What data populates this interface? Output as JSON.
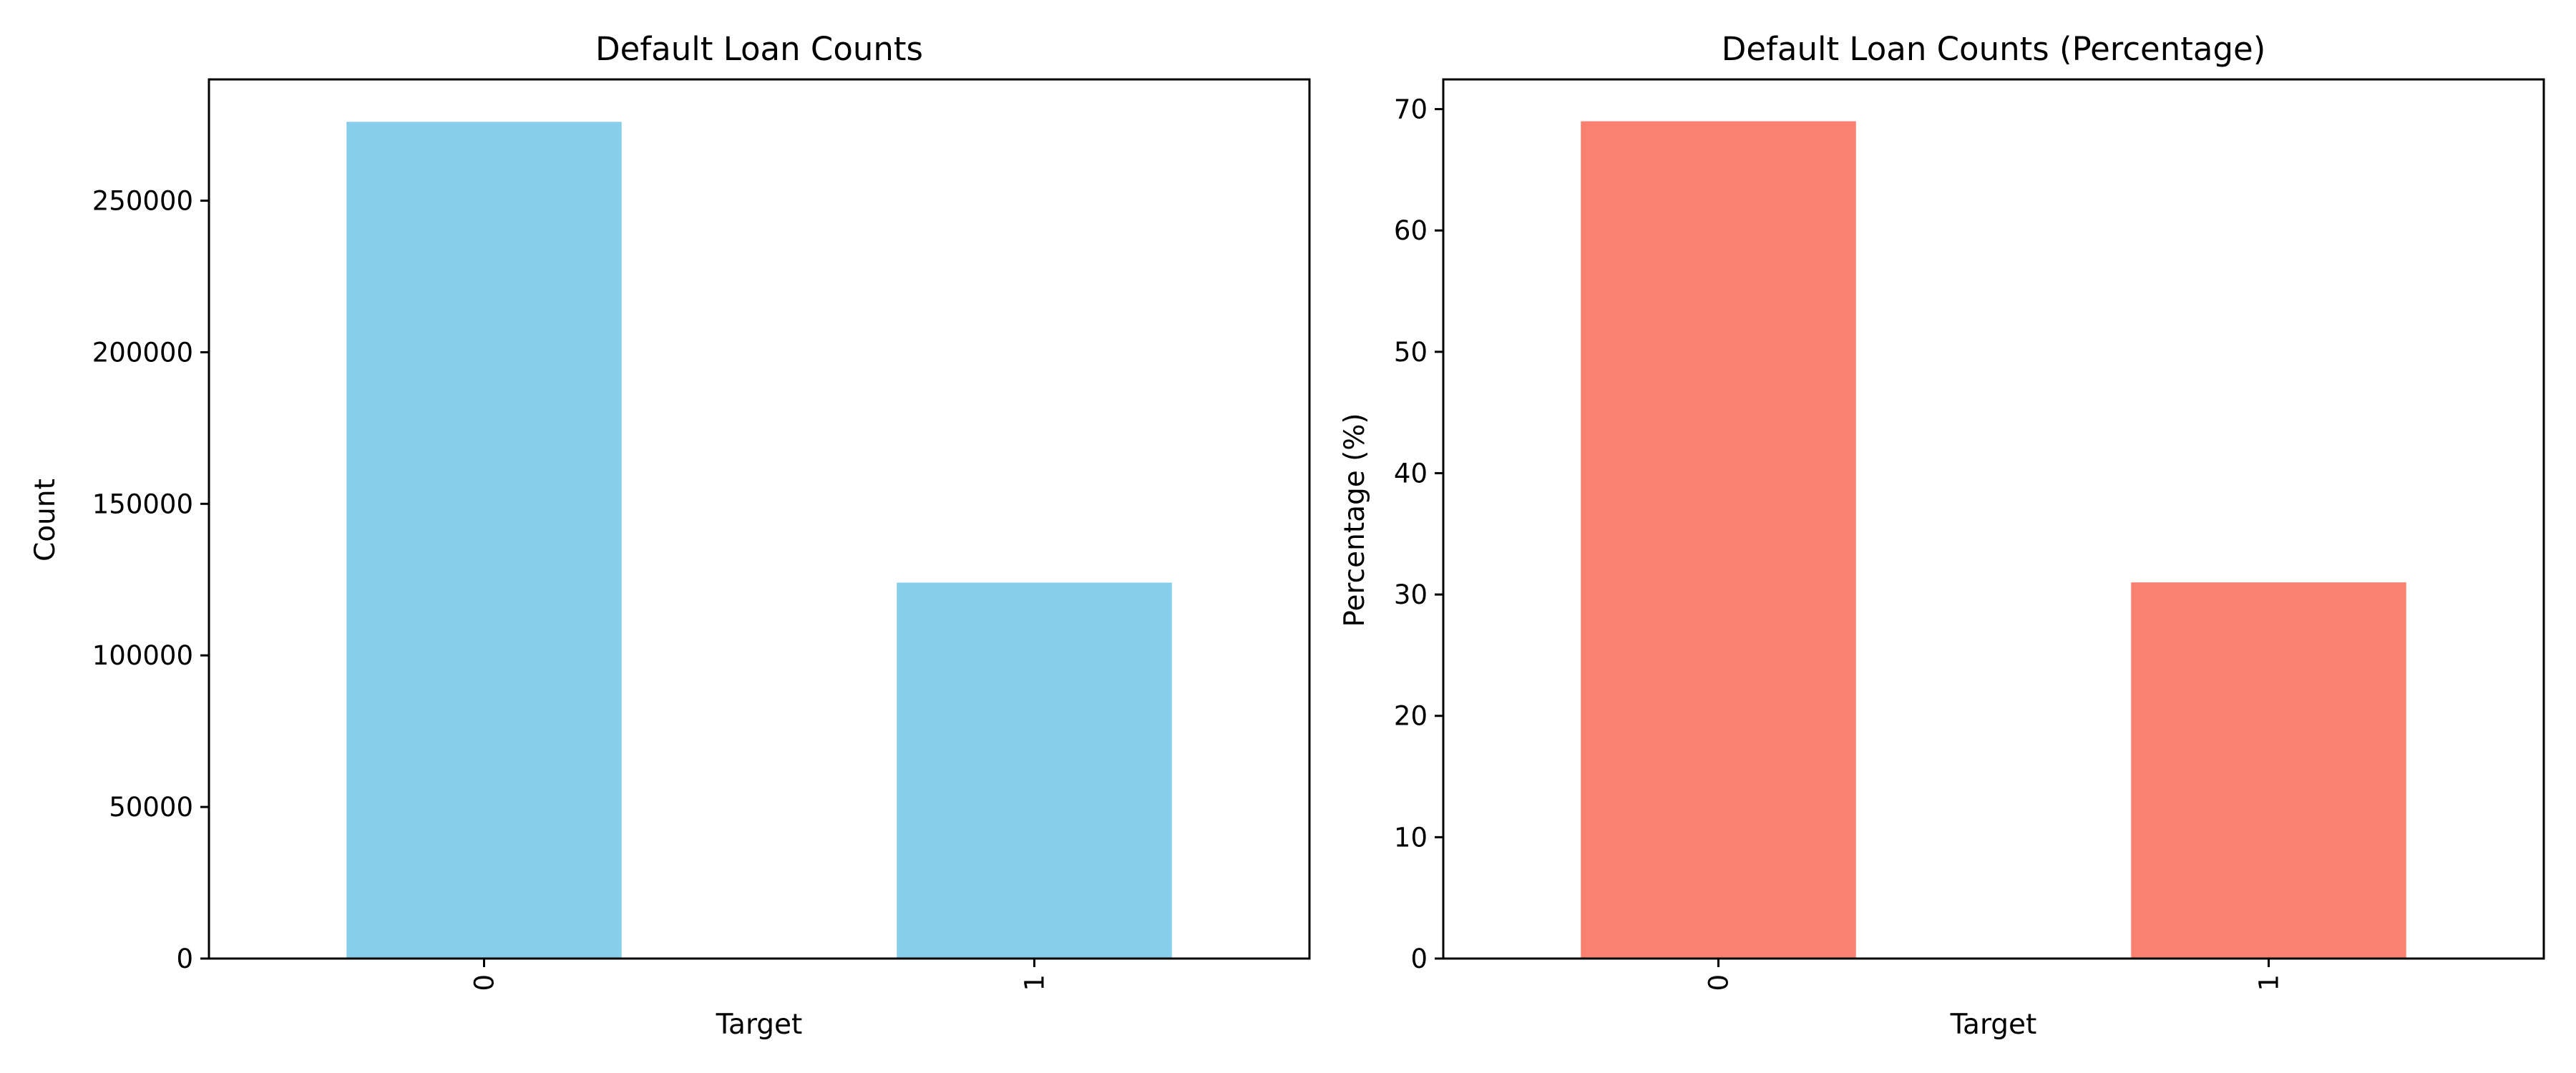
{
  "chart_data": [
    {
      "type": "bar",
      "title": "Default Loan Counts",
      "xlabel": "Target",
      "ylabel": "Count",
      "categories": [
        "0",
        "1"
      ],
      "values": [
        276000,
        124000
      ],
      "ylim": [
        0,
        290000
      ],
      "yticks": [
        0,
        50000,
        100000,
        150000,
        200000,
        250000
      ],
      "ytick_labels": [
        "0",
        "50000",
        "100000",
        "150000",
        "200000",
        "250000"
      ],
      "xtick_rotation": 90,
      "color": "#87CEEB",
      "grid": false,
      "legend": "none"
    },
    {
      "type": "bar",
      "title": "Default Loan Counts (Percentage)",
      "xlabel": "Target",
      "ylabel": "Percentage (%)",
      "categories": [
        "0",
        "1"
      ],
      "values": [
        69,
        31
      ],
      "ylim": [
        0,
        72.45
      ],
      "yticks": [
        0,
        10,
        20,
        30,
        40,
        50,
        60,
        70
      ],
      "ytick_labels": [
        "0",
        "10",
        "20",
        "30",
        "40",
        "50",
        "60",
        "70"
      ],
      "xtick_rotation": 90,
      "color": "#FA8072",
      "grid": false,
      "legend": "none"
    }
  ]
}
